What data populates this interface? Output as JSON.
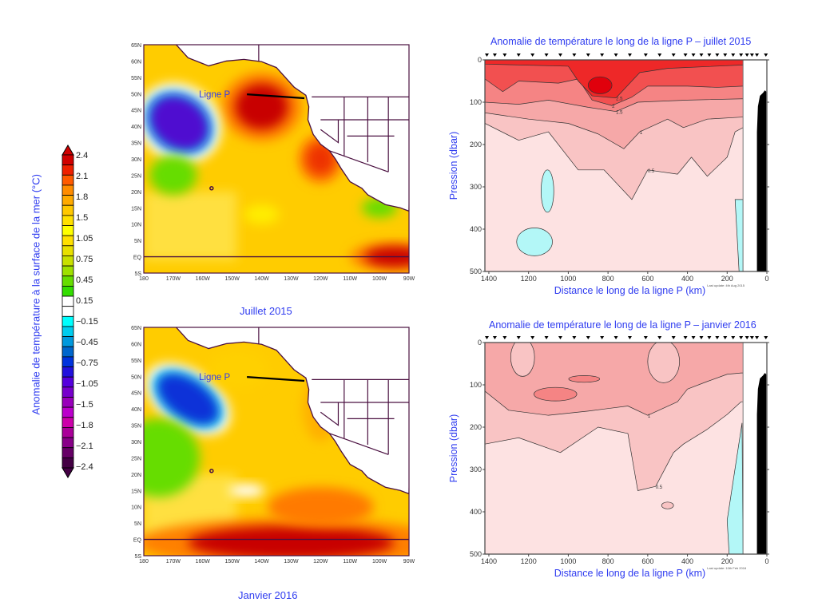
{
  "colors": {
    "label_text": "#2f3cf0",
    "land_outline": "#4a1040",
    "cyan": "#b3f7f7",
    "bathymetry": "#000000"
  },
  "colorbar": {
    "title": "Anomalie de température à la surface de la mer (°C)",
    "tick_labels": [
      "2.4",
      "2.1",
      "1.8",
      "1.5",
      "1.05",
      "0.75",
      "0.45",
      "0.15",
      "−0.15",
      "−0.45",
      "−0.75",
      "−1.05",
      "−1.5",
      "−1.8",
      "−2.1",
      "−2.4"
    ],
    "colors": [
      "#d00000",
      "#ee2000",
      "#ff5a00",
      "#ff8c00",
      "#ffaa00",
      "#ffc800",
      "#ffe000",
      "#ffff00",
      "#ffe000",
      "#e8e000",
      "#c8e000",
      "#9ee000",
      "#66dd00",
      "#33dd00",
      "#ffffff",
      "#ffffff",
      "#00ffff",
      "#00ccee",
      "#0099dd",
      "#0066cc",
      "#0033dd",
      "#2211dd",
      "#5500dd",
      "#7700cc",
      "#9900bb",
      "#bb00cc",
      "#cc00aa",
      "#aa0099",
      "#880088",
      "#660066",
      "#440044"
    ]
  },
  "chart_data": [
    {
      "type": "heatmap",
      "title": "Juillet 2015",
      "annotation": "Ligne P",
      "x_tick_labels": [
        "180",
        "170W",
        "160W",
        "150W",
        "140W",
        "130W",
        "120W",
        "110W",
        "100W",
        "90W"
      ],
      "y_tick_labels": [
        "65N",
        "60N",
        "55N",
        "50N",
        "45N",
        "40N",
        "35N",
        "30N",
        "25N",
        "20N",
        "15N",
        "10N",
        "5N",
        "EQ",
        "5S"
      ],
      "xlim": [
        -180,
        -90
      ],
      "ylim": [
        -5,
        65
      ],
      "background_value": 1.2,
      "features": [
        {
          "lon": -140,
          "lat": 46,
          "value": 2.4,
          "rlon": 9,
          "rlat": 7
        },
        {
          "lon": -168,
          "lat": 41,
          "value": -1.5,
          "rlon": 11,
          "rlat": 8
        },
        {
          "lon": -120,
          "lat": 30,
          "value": 2.1,
          "rlon": 5,
          "rlat": 5
        },
        {
          "lon": -95,
          "lat": 0,
          "value": 2.4,
          "rlon": 10,
          "rlat": 3
        },
        {
          "lon": -140,
          "lat": 13,
          "value": 1.05,
          "rlon": 6,
          "rlat": 3
        },
        {
          "lon": -170,
          "lat": 25,
          "value": 0.45,
          "rlon": 8,
          "rlat": 6
        },
        {
          "lon": -100,
          "lat": 15,
          "value": 0.45,
          "rlon": 6,
          "rlat": 3
        },
        {
          "lon": -95,
          "lat": 27,
          "value": 0.45,
          "rlon": 3,
          "rlat": 4
        }
      ]
    },
    {
      "type": "heatmap",
      "title": "Janvier 2016",
      "annotation": "Ligne P",
      "x_tick_labels": [
        "180",
        "170W",
        "160W",
        "150W",
        "140W",
        "130W",
        "120W",
        "110W",
        "100W",
        "90W"
      ],
      "y_tick_labels": [
        "65N",
        "60N",
        "55N",
        "50N",
        "45N",
        "40N",
        "35N",
        "30N",
        "25N",
        "20N",
        "15N",
        "10N",
        "5N",
        "EQ",
        "5S"
      ],
      "xlim": [
        -180,
        -90
      ],
      "ylim": [
        -5,
        65
      ],
      "background_value": 1.05,
      "features": [
        {
          "lon": -165,
          "lat": 43,
          "value": -1.05,
          "rlon": 12,
          "rlat": 6
        },
        {
          "lon": -175,
          "lat": 25,
          "value": 0.45,
          "rlon": 14,
          "rlat": 12
        },
        {
          "lon": -145,
          "lat": 15,
          "value": 0.15,
          "rlon": 6,
          "rlat": 2
        },
        {
          "lon": -130,
          "lat": -1,
          "value": 2.4,
          "rlon": 35,
          "rlat": 5
        },
        {
          "lon": -120,
          "lat": 10,
          "value": 1.8,
          "rlon": 18,
          "rlat": 6
        },
        {
          "lon": -148,
          "lat": 52,
          "value": 0.75,
          "rlon": 10,
          "rlat": 6
        },
        {
          "lon": -120,
          "lat": 40,
          "value": 1.5,
          "rlon": 6,
          "rlat": 10
        }
      ]
    },
    {
      "type": "area",
      "title": "Anomalie de température le long de la ligne P – juillet 2015",
      "xlabel": "Distance le long de la ligne P (km)",
      "ylabel": "Pression (dbar)",
      "xlim": [
        1420,
        0
      ],
      "ylim": [
        500,
        0
      ],
      "x_ticks": [
        1400,
        1200,
        1000,
        800,
        600,
        400,
        200,
        0
      ],
      "y_ticks": [
        0,
        100,
        200,
        300,
        400,
        500
      ],
      "footnote": "Last update: 4th Aug 2015",
      "contour_levels": [
        0,
        0.5,
        1,
        1.5,
        2,
        2.5,
        3
      ],
      "contours": [
        {
          "level": 0.5,
          "points": [
            [
              1420,
              150
            ],
            [
              1250,
              190
            ],
            [
              1100,
              170
            ],
            [
              950,
              260
            ],
            [
              820,
              260
            ],
            [
              680,
              330
            ],
            [
              600,
              260
            ],
            [
              450,
              270
            ],
            [
              380,
              230
            ],
            [
              300,
              275
            ],
            [
              200,
              230
            ],
            [
              160,
              170
            ],
            [
              120,
              160
            ]
          ]
        },
        {
          "level": 1,
          "points": [
            [
              1420,
              125
            ],
            [
              1200,
              140
            ],
            [
              1000,
              150
            ],
            [
              850,
              175
            ],
            [
              720,
              210
            ],
            [
              640,
              170
            ],
            [
              500,
              140
            ],
            [
              420,
              160
            ],
            [
              300,
              140
            ],
            [
              120,
              135
            ]
          ]
        },
        {
          "level": 1.5,
          "points": [
            [
              1420,
              100
            ],
            [
              1250,
              105
            ],
            [
              1100,
              95
            ],
            [
              900,
              112
            ],
            [
              760,
              122
            ],
            [
              650,
              100
            ],
            [
              400,
              95
            ],
            [
              120,
              92
            ]
          ]
        },
        {
          "level": 2,
          "points": [
            [
              1420,
              45
            ],
            [
              1330,
              75
            ],
            [
              1250,
              50
            ],
            [
              1050,
              55
            ],
            [
              950,
              45
            ],
            [
              880,
              95
            ],
            [
              780,
              108
            ],
            [
              680,
              88
            ],
            [
              600,
              62
            ],
            [
              400,
              62
            ],
            [
              250,
              65
            ],
            [
              120,
              62
            ]
          ]
        },
        {
          "level": 2.5,
          "points": [
            [
              1420,
              10
            ],
            [
              1000,
              15
            ],
            [
              950,
              50
            ],
            [
              880,
              85
            ],
            [
              760,
              90
            ],
            [
              700,
              60
            ],
            [
              640,
              30
            ],
            [
              500,
              20
            ],
            [
              120,
              12
            ]
          ]
        }
      ],
      "blobs": [
        {
          "level": 3,
          "x": 840,
          "y": 60,
          "rx": 60,
          "ry": 20
        },
        {
          "level": 0,
          "x": 1105,
          "y": 310,
          "rx": 32,
          "ry": 50
        },
        {
          "level": 0,
          "x": 1170,
          "y": 430,
          "rx": 90,
          "ry": 33
        }
      ],
      "cyan_strip": [
        [
          160,
          330
        ],
        [
          120,
          330
        ],
        [
          120,
          500
        ],
        [
          140,
          500
        ]
      ],
      "stations": [
        1410,
        1370,
        1320,
        1250,
        1180,
        1110,
        1040,
        970,
        900,
        830,
        760,
        690,
        610,
        540,
        470,
        410,
        370,
        330,
        290,
        250,
        210,
        170,
        130,
        100,
        75,
        50,
        5
      ]
    },
    {
      "type": "area",
      "title": "Anomalie de température le long de la ligne P – janvier 2016",
      "xlabel": "Distance le long de la ligne P (km)",
      "ylabel": "Pression (dbar)",
      "xlim": [
        1420,
        0
      ],
      "ylim": [
        500,
        0
      ],
      "x_ticks": [
        1400,
        1200,
        1000,
        800,
        600,
        400,
        200,
        0
      ],
      "y_ticks": [
        0,
        100,
        200,
        300,
        400,
        500
      ],
      "footnote": "Last update: 10th Feb 2016",
      "contour_levels": [
        0,
        0.5,
        1,
        1.5
      ],
      "contours": [
        {
          "level": 0.5,
          "points": [
            [
              1420,
              240
            ],
            [
              1250,
              225
            ],
            [
              1040,
              260
            ],
            [
              850,
              200
            ],
            [
              700,
              215
            ],
            [
              650,
              350
            ],
            [
              560,
              340
            ],
            [
              470,
              260
            ],
            [
              420,
              240
            ],
            [
              300,
              205
            ],
            [
              200,
              170
            ],
            [
              130,
              140
            ]
          ]
        },
        {
          "level": 1,
          "points": [
            [
              1420,
              115
            ],
            [
              1300,
              160
            ],
            [
              1100,
              172
            ],
            [
              900,
              162
            ],
            [
              700,
              150
            ],
            [
              600,
              172
            ],
            [
              450,
              140
            ],
            [
              400,
              110
            ],
            [
              300,
              92
            ],
            [
              200,
              75
            ],
            [
              130,
              72
            ]
          ]
        }
      ],
      "blobs": [
        {
          "level": 0.5,
          "x": 1230,
          "y": 35,
          "rx": 60,
          "ry": 45
        },
        {
          "level": 0.5,
          "x": 520,
          "y": 45,
          "rx": 80,
          "ry": 50
        },
        {
          "level": 1.5,
          "x": 1065,
          "y": 122,
          "rx": 108,
          "ry": 16
        },
        {
          "level": 1.5,
          "x": 920,
          "y": 86,
          "rx": 78,
          "ry": 8
        },
        {
          "level": 0.5,
          "x": 500,
          "y": 385,
          "rx": 30,
          "ry": 8
        }
      ],
      "cyan_strip": [
        [
          125,
          190
        ],
        [
          200,
          420
        ],
        [
          190,
          500
        ],
        [
          120,
          500
        ]
      ],
      "stations": [
        1410,
        1370,
        1320,
        1250,
        1180,
        1110,
        1040,
        970,
        900,
        830,
        760,
        690,
        610,
        540,
        470,
        410,
        370,
        330,
        290,
        250,
        210,
        170,
        130,
        100,
        75,
        50,
        5
      ]
    }
  ]
}
